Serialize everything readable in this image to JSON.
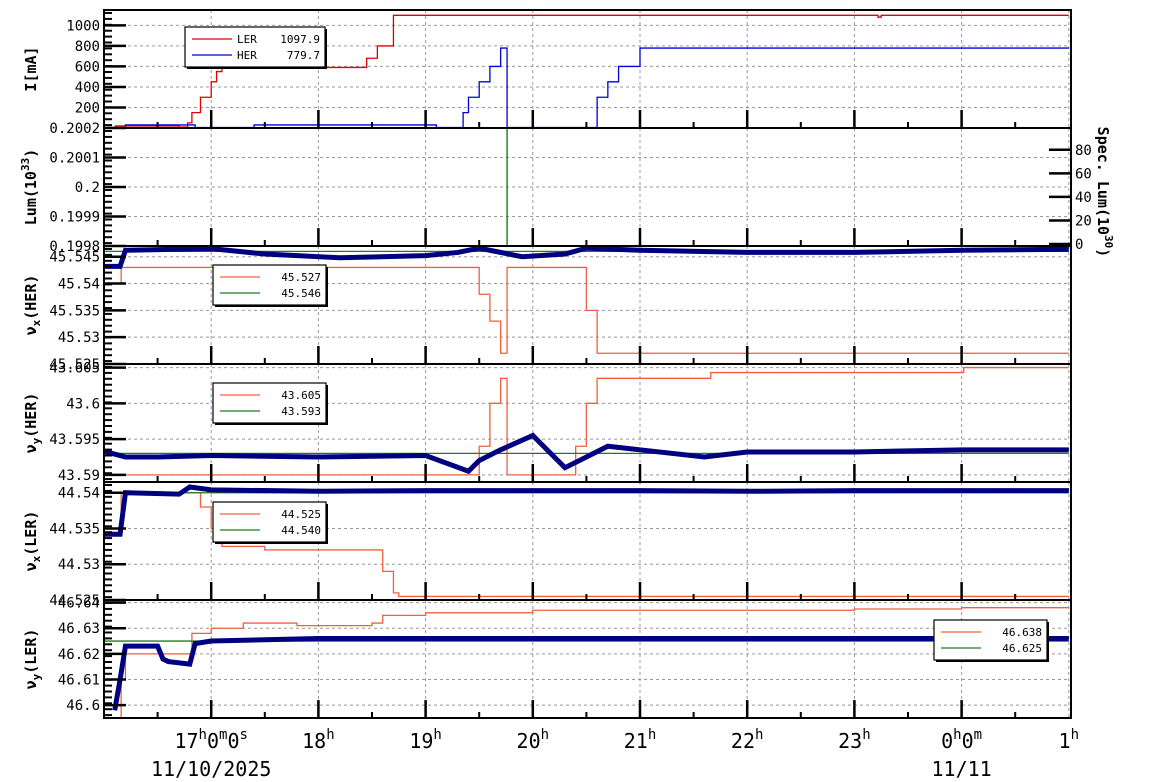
{
  "chart_data": {
    "type": "line",
    "title": "",
    "x_axis": {
      "label": "",
      "start": "2025-11-10 16:02",
      "end": "2025-11-11 01:00",
      "ticks": [
        "17h0m0s",
        "18h",
        "19h",
        "20h",
        "21h",
        "22h",
        "23h",
        "0h0m",
        "1h"
      ],
      "date_labels": [
        {
          "at": "17h0m0s",
          "text": "11/10/2025"
        },
        {
          "at": "0h0m",
          "text": "11/11"
        }
      ]
    },
    "panels": [
      {
        "id": "current",
        "ylabel": "I[mA]",
        "yticks": [
          200,
          400,
          600,
          800,
          1000
        ],
        "ylim": [
          0,
          1150
        ],
        "legend": [
          {
            "name": "LER",
            "value": "1097.9",
            "color": "#e00000"
          },
          {
            "name": "HER",
            "value": "779.7",
            "color": "#0000dd"
          }
        ],
        "series": [
          {
            "name": "LER",
            "color": "#e00000",
            "x_hours": [
              16.1,
              16.5,
              16.7,
              16.75,
              16.78,
              16.82,
              16.9,
              17.0,
              17.05,
              17.1,
              18.3,
              18.4,
              18.45,
              18.55,
              18.65,
              18.7,
              23.2,
              23.22,
              23.25,
              25.0
            ],
            "values": [
              20,
              20,
              10,
              10,
              50,
              150,
              300,
              450,
              550,
              590,
              590,
              590,
              680,
              800,
              800,
              1098,
              1098,
              1080,
              1098,
              1098
            ]
          },
          {
            "name": "HER",
            "color": "#0000dd",
            "x_hours": [
              16.02,
              16.15,
              16.2,
              16.8,
              16.85,
              17.4,
              17.45,
              19.05,
              19.1,
              19.2,
              19.25,
              19.35,
              19.4,
              19.5,
              19.6,
              19.7,
              19.75,
              19.76,
              20.3,
              20.5,
              20.6,
              20.7,
              20.8,
              21.0,
              25.0
            ],
            "values": [
              5,
              5,
              30,
              30,
              5,
              30,
              30,
              30,
              5,
              5,
              5,
              150,
              300,
              450,
              600,
              779,
              779,
              5,
              5,
              5,
              300,
              450,
              600,
              779,
              779
            ]
          }
        ]
      },
      {
        "id": "luminosity",
        "ylabel": "Lum(10^33)",
        "ylabel_right": "Spec. Lum(10^30)",
        "yticks": [
          0.1998,
          0.1999,
          0.2,
          0.2001,
          0.2002
        ],
        "yticks_right": [
          0,
          20,
          40,
          60,
          80
        ],
        "ylim": [
          0.1998,
          0.2002
        ],
        "series": [
          {
            "name": "Lum",
            "color": "#007700",
            "x_hours": [
              19.75,
              19.76
            ],
            "values": [
              0.2002,
              0.1998
            ]
          }
        ]
      },
      {
        "id": "nux_her",
        "ylabel": "νx(HER)",
        "yticks": [
          45.525,
          45.53,
          45.535,
          45.54,
          45.545
        ],
        "ylim": [
          45.525,
          45.547
        ],
        "legend": [
          {
            "value": "45.527",
            "color": "#f06040"
          },
          {
            "value": "45.546",
            "color": "#207a20"
          }
        ],
        "series": [
          {
            "name": "set",
            "color": "#f06040",
            "x_hours": [
              16.0,
              16.15,
              16.16,
              19.4,
              19.5,
              19.6,
              19.7,
              19.75,
              19.76,
              20.3,
              20.5,
              20.6,
              21.0,
              25.0
            ],
            "values": [
              45.54,
              45.54,
              45.543,
              45.543,
              45.538,
              45.533,
              45.527,
              45.527,
              45.543,
              45.543,
              45.535,
              45.527,
              45.527,
              45.527
            ]
          },
          {
            "name": "target",
            "color": "#207a20",
            "x_hours": [
              16.0,
              25.0
            ],
            "values": [
              45.546,
              45.546
            ]
          },
          {
            "name": "measured",
            "color": "#000080",
            "x_hours": [
              16.0,
              16.15,
              16.2,
              17.0,
              17.5,
              18.2,
              19.0,
              19.3,
              19.5,
              19.9,
              20.3,
              20.5,
              21.0,
              22.0,
              23.0,
              24.0,
              25.0
            ],
            "values": [
              45.5432,
              45.5432,
              45.5462,
              45.5465,
              45.5455,
              45.5448,
              45.5452,
              45.5458,
              45.5466,
              45.545,
              45.5455,
              45.5466,
              45.5462,
              45.5458,
              45.5458,
              45.5462,
              45.5464
            ]
          }
        ]
      },
      {
        "id": "nuy_her",
        "ylabel": "νy(HER)",
        "yticks": [
          43.59,
          43.595,
          43.6,
          43.605
        ],
        "ylim": [
          43.589,
          43.6055
        ],
        "legend": [
          {
            "value": "43.605",
            "color": "#f06040"
          },
          {
            "value": "43.593",
            "color": "#207a20"
          }
        ],
        "series": [
          {
            "name": "set",
            "color": "#f06040",
            "x_hours": [
              16.0,
              19.4,
              19.5,
              19.6,
              19.7,
              19.75,
              19.76,
              20.2,
              20.4,
              20.5,
              20.6,
              21.0,
              21.65,
              21.66,
              24.0,
              24.02,
              25.0
            ],
            "values": [
              43.59,
              43.59,
              43.594,
              43.6,
              43.6035,
              43.6035,
              43.59,
              43.59,
              43.594,
              43.6,
              43.6035,
              43.6035,
              43.6035,
              43.6043,
              43.6043,
              43.605,
              43.605
            ]
          },
          {
            "name": "target",
            "color": "#207a20",
            "x_hours": [
              16.0,
              25.0
            ],
            "values": [
              43.593,
              43.593
            ]
          },
          {
            "name": "measured",
            "color": "#000080",
            "x_hours": [
              16.0,
              16.2,
              16.5,
              17.0,
              18.0,
              19.0,
              19.4,
              19.5,
              19.7,
              20.0,
              20.3,
              20.5,
              20.7,
              21.0,
              21.6,
              22.0,
              23.0,
              24.0,
              25.0
            ],
            "values": [
              43.5933,
              43.5925,
              43.5925,
              43.5927,
              43.5925,
              43.5927,
              43.5905,
              43.592,
              43.5935,
              43.5955,
              43.591,
              43.5925,
              43.594,
              43.5935,
              43.5925,
              43.5932,
              43.5932,
              43.5935,
              43.5935
            ]
          }
        ]
      },
      {
        "id": "nux_ler",
        "ylabel": "νx(LER)",
        "yticks": [
          44.525,
          44.53,
          44.535,
          44.54
        ],
        "ylim": [
          44.525,
          44.5415
        ],
        "legend": [
          {
            "value": "44.525",
            "color": "#f06040"
          },
          {
            "value": "44.540",
            "color": "#207a20"
          }
        ],
        "series": [
          {
            "name": "set",
            "color": "#f06040",
            "x_hours": [
              16.0,
              16.15,
              16.16,
              16.75,
              16.9,
              17.0,
              17.1,
              17.5,
              18.5,
              18.6,
              18.7,
              18.75,
              19.0,
              25.0
            ],
            "values": [
              44.535,
              44.535,
              44.54,
              44.54,
              44.538,
              44.535,
              44.5325,
              44.532,
              44.532,
              44.529,
              44.526,
              44.5255,
              44.5255,
              44.5255
            ]
          },
          {
            "name": "target",
            "color": "#207a20",
            "x_hours": [
              16.0,
              25.0
            ],
            "values": [
              44.54,
              44.54
            ]
          },
          {
            "name": "measured",
            "color": "#000080",
            "x_hours": [
              16.0,
              16.15,
              16.2,
              16.7,
              16.8,
              17.0,
              18.0,
              19.0,
              20.0,
              21.0,
              22.0,
              23.0,
              24.0,
              25.0
            ],
            "values": [
              44.5342,
              44.5342,
              44.54,
              44.5398,
              44.5408,
              44.5404,
              44.5402,
              44.5403,
              44.5403,
              44.5403,
              44.5402,
              44.5403,
              44.5403,
              44.5403
            ]
          }
        ]
      },
      {
        "id": "nuy_ler",
        "ylabel": "νy(LER)",
        "yticks": [
          46.6,
          46.61,
          46.62,
          46.63,
          46.64
        ],
        "ylim": [
          46.595,
          46.641
        ],
        "legend": [
          {
            "value": "46.638",
            "color": "#f06040"
          },
          {
            "value": "46.625",
            "color": "#207a20"
          }
        ],
        "series": [
          {
            "name": "set",
            "color": "#f06040",
            "x_hours": [
              16.0,
              16.15,
              16.16,
              16.2,
              16.8,
              16.82,
              17.0,
              17.3,
              17.8,
              18.5,
              18.6,
              19.0,
              20.0,
              21.0,
              22.0,
              23.0,
              24.0,
              25.0
            ],
            "values": [
              46.595,
              46.595,
              46.61,
              46.62,
              46.62,
              46.628,
              46.63,
              46.632,
              46.631,
              46.632,
              46.635,
              46.636,
              46.637,
              46.637,
              46.637,
              46.6375,
              46.638,
              46.638
            ]
          },
          {
            "name": "target",
            "color": "#207a20",
            "x_hours": [
              16.0,
              25.0
            ],
            "values": [
              46.625,
              46.625
            ]
          },
          {
            "name": "measured",
            "color": "#000080",
            "x_hours": [
              16.1,
              16.15,
              16.2,
              16.5,
              16.55,
              16.6,
              16.8,
              16.85,
              17.0,
              18.0,
              19.0,
              20.0,
              21.0,
              22.0,
              23.0,
              24.0,
              25.0
            ],
            "values": [
              46.598,
              46.61,
              46.623,
              46.623,
              46.618,
              46.617,
              46.616,
              46.624,
              46.625,
              46.626,
              46.626,
              46.626,
              46.626,
              46.626,
              46.626,
              46.626,
              46.626
            ]
          }
        ]
      }
    ]
  }
}
